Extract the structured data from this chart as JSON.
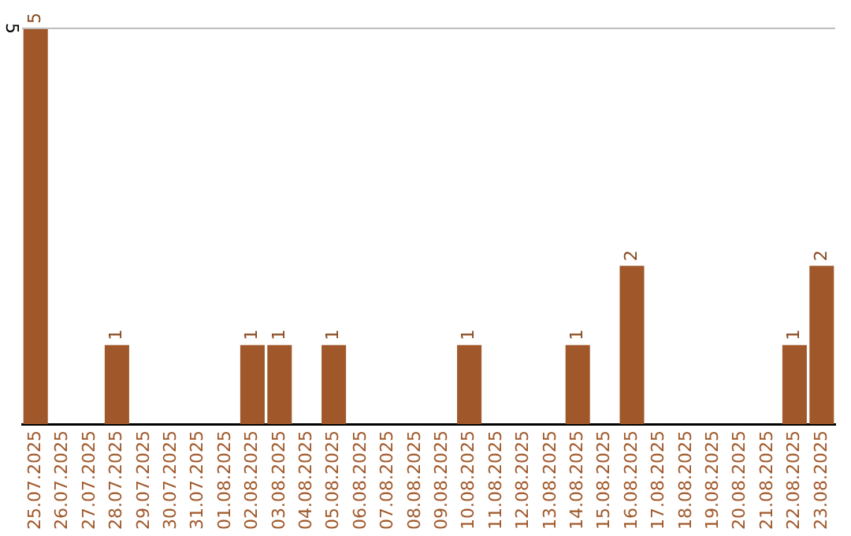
{
  "chart_data": {
    "type": "bar",
    "categories": [
      "25.07.2025",
      "26.07.2025",
      "27.07.2025",
      "28.07.2025",
      "29.07.2025",
      "30.07.2025",
      "31.07.2025",
      "01.08.2025",
      "02.08.2025",
      "03.08.2025",
      "04.08.2025",
      "05.08.2025",
      "06.08.2025",
      "07.08.2025",
      "08.08.2025",
      "09.08.2025",
      "10.08.2025",
      "11.08.2025",
      "12.08.2025",
      "13.08.2025",
      "14.08.2025",
      "15.08.2025",
      "16.08.2025",
      "17.08.2025",
      "18.08.2025",
      "19.08.2025",
      "20.08.2025",
      "21.08.2025",
      "22.08.2025",
      "23.08.2025"
    ],
    "values": [
      5,
      0,
      0,
      1,
      0,
      0,
      0,
      0,
      1,
      1,
      0,
      1,
      0,
      0,
      0,
      0,
      1,
      0,
      0,
      0,
      1,
      0,
      2,
      0,
      0,
      0,
      0,
      0,
      1,
      2
    ],
    "value_labels": [
      "5",
      null,
      null,
      "1",
      null,
      null,
      null,
      null,
      "1",
      "1",
      null,
      "1",
      null,
      null,
      null,
      null,
      "1",
      null,
      null,
      null,
      "1",
      null,
      "2",
      null,
      null,
      null,
      null,
      null,
      "1",
      "2"
    ],
    "color": "#a0582a",
    "ylim": [
      0,
      5
    ],
    "yticks": [
      5
    ],
    "ref_lines": [
      {
        "axis": "y",
        "value": 5,
        "color": "#bdbdbd"
      }
    ],
    "legend": false
  }
}
